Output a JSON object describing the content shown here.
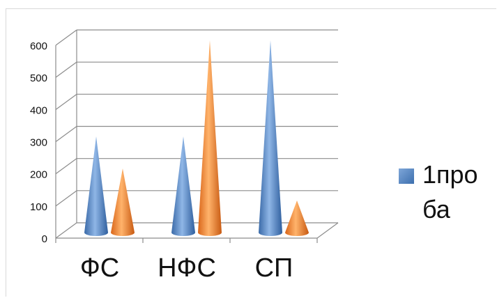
{
  "chart_data": {
    "type": "bar",
    "style": "3d-cone",
    "categories": [
      "ФС",
      "НФС",
      "СП"
    ],
    "series": [
      {
        "name": "1проба",
        "values": [
          300,
          300,
          600
        ],
        "color": "#4f81bd"
      },
      {
        "values": [
          200,
          600,
          100
        ],
        "color": "#f79646"
      }
    ],
    "yticks": [
      "0",
      "100",
      "200",
      "300",
      "400",
      "500",
      "600"
    ],
    "ylim": [
      0,
      600
    ],
    "grid": true,
    "legend_position": "right"
  },
  "legend": {
    "label": "1проба"
  }
}
